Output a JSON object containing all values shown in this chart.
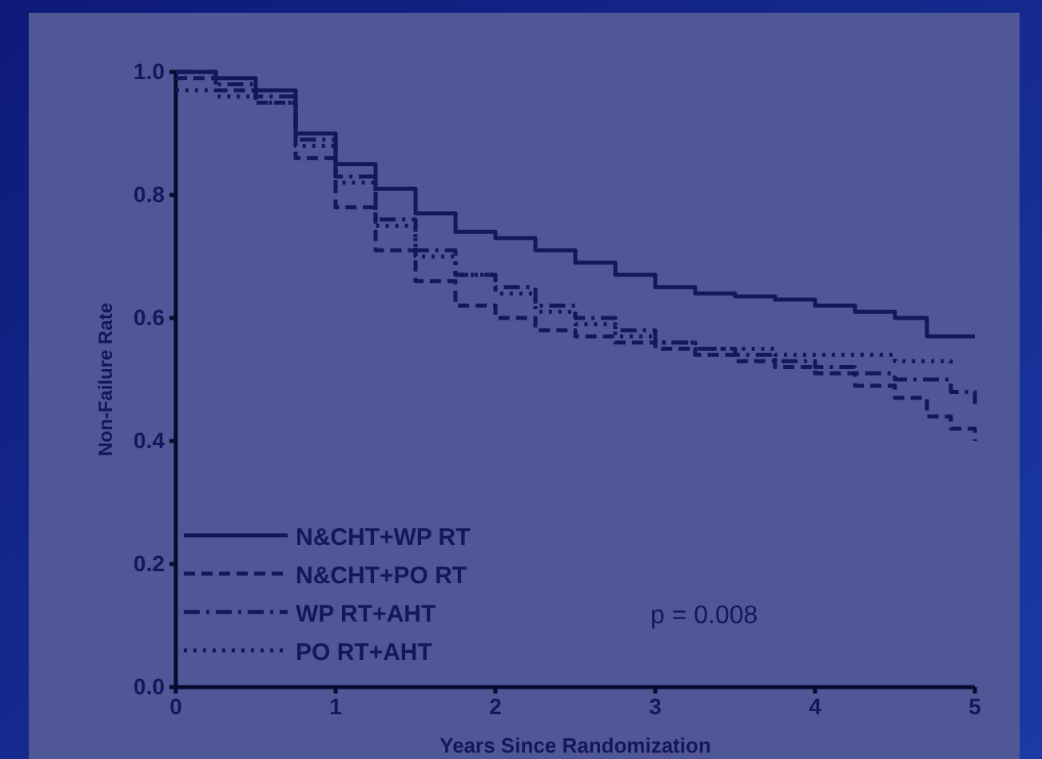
{
  "chart_data": {
    "type": "step",
    "xlabel": "Years Since Randomization",
    "ylabel": "Non-Failure Rate",
    "x": [
      0,
      0.25,
      0.5,
      0.75,
      1,
      1.25,
      1.5,
      1.75,
      2,
      2.25,
      2.5,
      2.75,
      3,
      3.25,
      3.5,
      3.75,
      4,
      4.25,
      4.5,
      4.7,
      4.85,
      5
    ],
    "series": [
      {
        "name": "N&CHT+WP RT",
        "color": "#14185a",
        "line_style": "solid",
        "values": [
          1.0,
          0.99,
          0.97,
          0.9,
          0.85,
          0.81,
          0.77,
          0.74,
          0.73,
          0.71,
          0.69,
          0.67,
          0.65,
          0.64,
          0.635,
          0.63,
          0.62,
          0.61,
          0.6,
          0.57,
          0.57,
          0.57
        ]
      },
      {
        "name": "N&CHT+PO RT",
        "color": "#14185a",
        "line_style": "dashed",
        "values": [
          0.99,
          0.97,
          0.95,
          0.86,
          0.78,
          0.71,
          0.66,
          0.62,
          0.6,
          0.58,
          0.57,
          0.56,
          0.55,
          0.54,
          0.53,
          0.52,
          0.51,
          0.49,
          0.47,
          0.44,
          0.42,
          0.4
        ]
      },
      {
        "name": "WP RT+AHT",
        "color": "#14185a",
        "line_style": "dashdot",
        "values": [
          1.0,
          0.98,
          0.96,
          0.89,
          0.83,
          0.76,
          0.71,
          0.67,
          0.65,
          0.62,
          0.6,
          0.58,
          0.56,
          0.55,
          0.54,
          0.53,
          0.52,
          0.51,
          0.5,
          0.5,
          0.48,
          0.46
        ]
      },
      {
        "name": "PO RT+AHT",
        "color": "#14185a",
        "line_style": "dotted",
        "values": [
          0.97,
          0.96,
          0.95,
          0.88,
          0.82,
          0.75,
          0.7,
          0.67,
          0.64,
          0.61,
          0.59,
          0.57,
          0.56,
          0.55,
          0.55,
          0.54,
          0.54,
          0.54,
          0.53,
          0.53,
          0.52,
          null
        ]
      }
    ],
    "xlim": [
      0,
      5
    ],
    "xticks": [
      0,
      1,
      2,
      3,
      4,
      5
    ],
    "ylim": [
      0,
      1
    ],
    "yticks": [
      {
        "value": 0,
        "label": "0.0"
      },
      {
        "value": 0.2,
        "label": "0.2"
      },
      {
        "value": 0.4,
        "label": "0.4"
      },
      {
        "value": 0.6,
        "label": "0.6"
      },
      {
        "value": 0.8,
        "label": "0.8"
      },
      {
        "value": 1,
        "label": "1.0"
      }
    ],
    "legend": "bottom left",
    "grid": false,
    "annotations": [
      "p = 0.008"
    ]
  }
}
